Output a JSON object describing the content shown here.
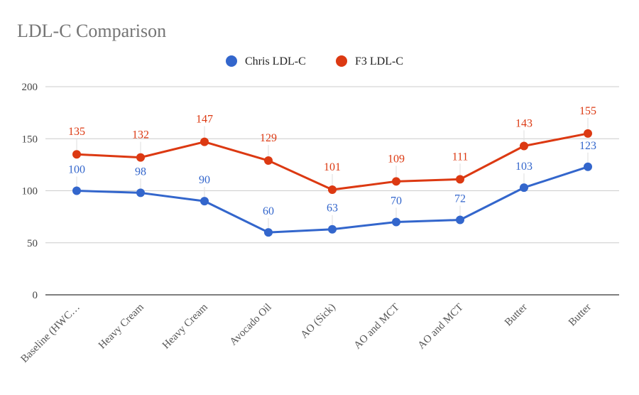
{
  "chart_data": {
    "type": "line",
    "title": "LDL-C Comparison",
    "xlabel": "",
    "ylabel": "",
    "categories": [
      "Baseline (HWC…",
      "Heavy Cream",
      "Heavy Cream",
      "Avocado Oil",
      "AO (Sick)",
      "AO and MCT",
      "AO and MCT",
      "Butter",
      "Butter"
    ],
    "series": [
      {
        "name": "Chris LDL-C",
        "color": "#3366cc",
        "values": [
          100,
          98,
          90,
          60,
          63,
          70,
          72,
          103,
          123
        ]
      },
      {
        "name": "F3 LDL-C",
        "color": "#dc3912",
        "values": [
          135,
          132,
          147,
          129,
          101,
          109,
          111,
          143,
          155
        ]
      }
    ],
    "yticks": [
      0,
      50,
      100,
      150,
      200
    ],
    "ylim": [
      0,
      200
    ],
    "grid": true,
    "legend_position": "top"
  }
}
